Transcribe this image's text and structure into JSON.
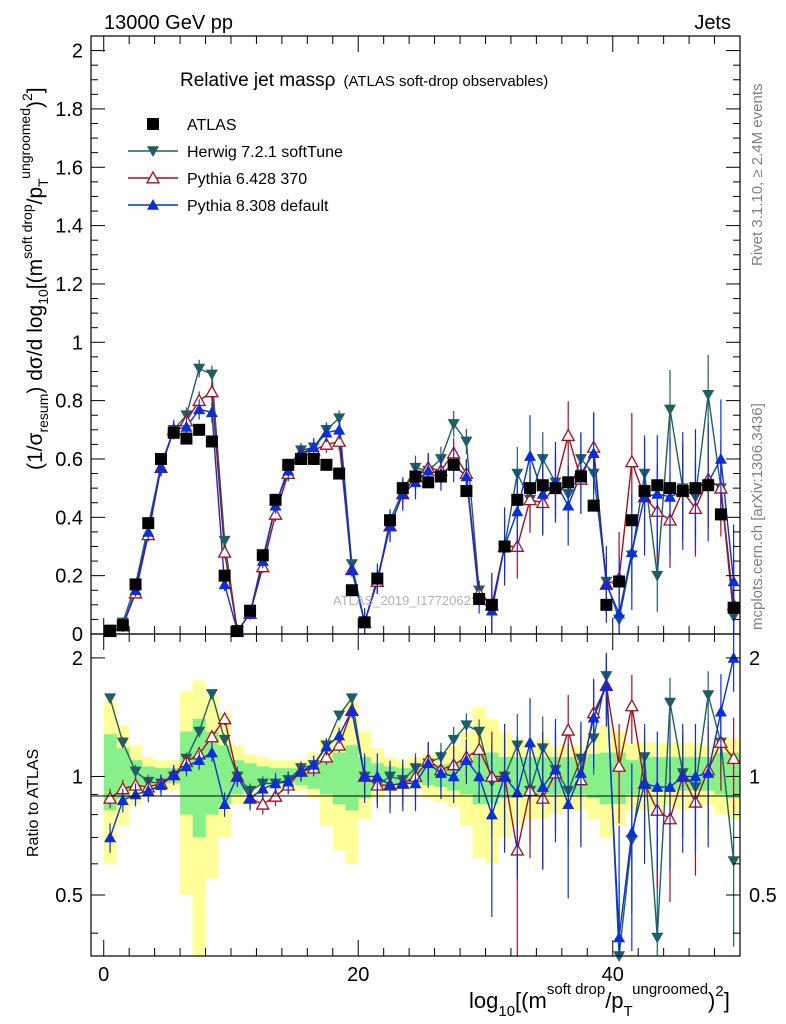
{
  "header": {
    "left": "13000 GeV pp",
    "right": "Jets"
  },
  "side_text": {
    "top": "Rivet 3.1.10, ≥ 2.4M events",
    "bottom": "mcplots.cern.ch [arXiv:1306.3436]"
  },
  "watermark": "ATLAS_2019_I1772062",
  "colors": {
    "atlas": "#000000",
    "herwig": "#1f5f64",
    "pythia6": "#a11020",
    "pythia8": "#0b2fd6",
    "band_inner": "#88f088",
    "band_outer": "#ffff99"
  },
  "chart_data": [
    {
      "type": "scatter",
      "title": "Relative jet massρ",
      "subtitle": "(ATLAS soft-drop observables)",
      "ylabel": "(1/σresum) dσ/d log10[(m soft drop/pT ungroomed)2]",
      "xlim": [
        -1,
        50
      ],
      "ylim": [
        0,
        2.05
      ],
      "y_ticks": [
        "0",
        "0.2",
        "0.4",
        "0.6",
        "0.8",
        "1",
        "1.2",
        "1.4",
        "1.6",
        "1.8",
        "2"
      ],
      "legend_position": "top-left",
      "series": [
        {
          "name": "ATLAS",
          "marker": "square",
          "x": [
            0.5,
            1.5,
            2.5,
            3.5,
            4.5,
            5.5,
            6.5,
            7.5,
            8.5,
            9.5,
            10.5,
            11.5,
            12.5,
            13.5,
            14.5,
            15.5,
            16.5,
            17.5,
            18.5,
            19.5,
            20.5,
            21.5,
            22.5,
            23.5,
            24.5,
            25.5,
            26.5,
            27.5,
            28.5,
            29.5,
            30.5,
            31.5,
            32.5,
            33.5,
            34.5,
            35.5,
            36.5,
            37.5,
            38.5,
            39.5,
            40.5,
            41.5,
            42.5,
            43.5,
            44.5,
            45.5,
            46.5,
            47.5,
            48.5,
            49.5
          ],
          "values": [
            0.01,
            0.03,
            0.17,
            0.38,
            0.6,
            0.69,
            0.67,
            0.7,
            0.66,
            0.2,
            0.01,
            0.08,
            0.27,
            0.46,
            0.58,
            0.6,
            0.6,
            0.58,
            0.55,
            0.15,
            0.04,
            0.19,
            0.39,
            0.5,
            0.54,
            0.52,
            0.54,
            0.58,
            0.49,
            0.12,
            0.1,
            0.3,
            0.46,
            0.5,
            0.51,
            0.5,
            0.52,
            0.54,
            0.44,
            0.1,
            0.18,
            0.39,
            0.49,
            0.51,
            0.5,
            0.49,
            0.5,
            0.51,
            0.41,
            0.09
          ]
        },
        {
          "name": "Herwig 7.2.1 softTune",
          "marker": "triangle-down",
          "x": [
            0.5,
            1.5,
            2.5,
            3.5,
            4.5,
            5.5,
            6.5,
            7.5,
            8.5,
            9.5,
            10.5,
            11.5,
            12.5,
            13.5,
            14.5,
            15.5,
            16.5,
            17.5,
            18.5,
            19.5,
            20.5,
            21.5,
            22.5,
            23.5,
            24.5,
            25.5,
            26.5,
            27.5,
            28.5,
            29.5,
            30.5,
            31.5,
            32.5,
            33.5,
            34.5,
            35.5,
            36.5,
            37.5,
            38.5,
            39.5,
            40.5,
            41.5,
            42.5,
            43.5,
            44.5,
            45.5,
            46.5,
            47.5,
            48.5,
            49.5
          ],
          "values": [
            0.016,
            0.04,
            0.17,
            0.37,
            0.58,
            0.7,
            0.75,
            0.91,
            0.89,
            0.32,
            0.01,
            0.07,
            0.26,
            0.44,
            0.57,
            0.63,
            0.64,
            0.7,
            0.74,
            0.24,
            0.04,
            0.18,
            0.39,
            0.49,
            0.57,
            0.56,
            0.6,
            0.72,
            0.66,
            0.15,
            0.09,
            0.3,
            0.55,
            0.46,
            0.6,
            0.52,
            0.48,
            0.6,
            0.55,
            0.18,
            0.05,
            0.27,
            0.55,
            0.2,
            0.77,
            0.5,
            0.47,
            0.82,
            0.5,
            0.06
          ]
        },
        {
          "name": "Pythia 6.428 370",
          "marker": "triangle-up-open",
          "x": [
            0.5,
            1.5,
            2.5,
            3.5,
            4.5,
            5.5,
            6.5,
            7.5,
            8.5,
            9.5,
            10.5,
            11.5,
            12.5,
            13.5,
            14.5,
            15.5,
            16.5,
            17.5,
            18.5,
            19.5,
            20.5,
            21.5,
            22.5,
            23.5,
            24.5,
            25.5,
            26.5,
            27.5,
            28.5,
            29.5,
            30.5,
            31.5,
            32.5,
            33.5,
            34.5,
            35.5,
            36.5,
            37.5,
            38.5,
            39.5,
            40.5,
            41.5,
            42.5,
            43.5,
            44.5,
            45.5,
            46.5,
            47.5,
            48.5,
            49.5
          ],
          "values": [
            0.009,
            0.028,
            0.14,
            0.34,
            0.57,
            0.7,
            0.73,
            0.8,
            0.83,
            0.28,
            0.01,
            0.07,
            0.23,
            0.41,
            0.55,
            0.62,
            0.63,
            0.65,
            0.66,
            0.22,
            0.04,
            0.18,
            0.37,
            0.48,
            0.54,
            0.57,
            0.56,
            0.62,
            0.55,
            0.14,
            0.1,
            0.3,
            0.3,
            0.46,
            0.45,
            0.51,
            0.68,
            0.53,
            0.64,
            0.17,
            0.19,
            0.59,
            0.47,
            0.42,
            0.39,
            0.49,
            0.43,
            0.53,
            0.5,
            0.1
          ]
        },
        {
          "name": "Pythia 8.308 default",
          "marker": "triangle-up",
          "x": [
            0.5,
            1.5,
            2.5,
            3.5,
            4.5,
            5.5,
            6.5,
            7.5,
            8.5,
            9.5,
            10.5,
            11.5,
            12.5,
            13.5,
            14.5,
            15.5,
            16.5,
            17.5,
            18.5,
            19.5,
            20.5,
            21.5,
            22.5,
            23.5,
            24.5,
            25.5,
            26.5,
            27.5,
            28.5,
            29.5,
            30.5,
            31.5,
            32.5,
            33.5,
            34.5,
            35.5,
            36.5,
            37.5,
            38.5,
            39.5,
            40.5,
            41.5,
            42.5,
            43.5,
            44.5,
            45.5,
            46.5,
            47.5,
            48.5,
            49.5
          ],
          "values": [
            0.007,
            0.026,
            0.15,
            0.35,
            0.57,
            0.7,
            0.71,
            0.77,
            0.76,
            0.17,
            0.01,
            0.07,
            0.25,
            0.44,
            0.56,
            0.62,
            0.64,
            0.69,
            0.7,
            0.22,
            0.04,
            0.19,
            0.37,
            0.48,
            0.52,
            0.56,
            0.55,
            0.58,
            0.54,
            0.12,
            0.08,
            0.3,
            0.42,
            0.61,
            0.48,
            0.52,
            0.44,
            0.55,
            0.62,
            0.17,
            0.07,
            0.28,
            0.47,
            0.48,
            0.47,
            0.49,
            0.5,
            0.52,
            0.6,
            0.18
          ]
        }
      ]
    },
    {
      "type": "line",
      "ylabel": "Ratio to ATLAS",
      "xlabel": "log10[(m soft drop/pT ungroomed)2]",
      "xlim": [
        -1,
        50
      ],
      "ylim": [
        0.35,
        2.3
      ],
      "y_scale": "log",
      "x_ticks": [
        "0",
        "20",
        "40"
      ],
      "y_ticks": [
        "0.5",
        "1",
        "2"
      ],
      "series": [
        {
          "name": "Herwig 7.2.1 softTune",
          "values": [
            1.58,
            1.22,
            1.03,
            0.97,
            0.96,
            1.0,
            1.11,
            1.3,
            1.62,
            1.24,
            1.0,
            0.92,
            0.96,
            0.96,
            0.98,
            1.05,
            1.07,
            1.2,
            1.43,
            1.58,
            1.0,
            0.95,
            1.0,
            0.98,
            1.05,
            1.08,
            1.12,
            1.24,
            1.35,
            1.3,
            0.97,
            1.0,
            1.2,
            0.92,
            1.18,
            1.04,
            0.92,
            1.11,
            1.25,
            1.8,
            0.3,
            0.69,
            1.12,
            0.39,
            1.54,
            1.02,
            0.94,
            1.61,
            1.22,
            0.61
          ]
        },
        {
          "name": "Pythia 6.428 370",
          "values": [
            0.88,
            0.93,
            0.95,
            0.94,
            0.96,
            1.01,
            1.09,
            1.14,
            1.26,
            1.4,
            1.0,
            0.88,
            0.85,
            0.89,
            0.95,
            1.03,
            1.05,
            1.12,
            1.2,
            1.47,
            1.0,
            0.95,
            0.95,
            0.96,
            1.0,
            1.1,
            1.04,
            1.07,
            1.12,
            1.17,
            1.0,
            1.0,
            0.65,
            0.92,
            0.88,
            1.02,
            1.31,
            0.98,
            1.45,
            1.7,
            1.06,
            1.51,
            0.96,
            0.82,
            0.78,
            1.0,
            0.86,
            1.04,
            1.22,
            1.11
          ]
        },
        {
          "name": "Pythia 8.308 default",
          "values": [
            0.7,
            0.87,
            0.9,
            0.92,
            0.95,
            1.01,
            1.06,
            1.1,
            1.15,
            0.85,
            1.0,
            0.88,
            0.93,
            0.96,
            0.97,
            1.03,
            1.07,
            1.19,
            1.27,
            1.47,
            1.0,
            1.0,
            0.95,
            0.96,
            0.96,
            1.08,
            1.02,
            1.0,
            1.1,
            1.0,
            0.8,
            1.0,
            0.91,
            1.22,
            0.94,
            1.04,
            0.85,
            1.02,
            1.41,
            1.7,
            0.39,
            0.72,
            0.96,
            0.94,
            0.94,
            1.0,
            1.0,
            1.02,
            1.46,
            2.0
          ]
        }
      ],
      "bands": {
        "inner": [
          [
            0.82,
            1.28
          ],
          [
            0.88,
            1.18
          ],
          [
            0.93,
            1.1
          ],
          [
            0.95,
            1.06
          ],
          [
            0.96,
            1.05
          ],
          [
            0.96,
            1.05
          ],
          [
            0.8,
            1.3
          ],
          [
            0.7,
            1.4
          ],
          [
            0.8,
            1.3
          ],
          [
            0.85,
            1.2
          ],
          [
            0.9,
            1.1
          ],
          [
            0.93,
            1.08
          ],
          [
            0.95,
            1.06
          ],
          [
            0.96,
            1.05
          ],
          [
            0.96,
            1.05
          ],
          [
            0.95,
            1.05
          ],
          [
            0.93,
            1.07
          ],
          [
            0.9,
            1.1
          ],
          [
            0.85,
            1.15
          ],
          [
            0.82,
            1.2
          ],
          [
            0.88,
            1.12
          ],
          [
            0.93,
            1.08
          ],
          [
            0.95,
            1.06
          ],
          [
            0.96,
            1.05
          ],
          [
            0.96,
            1.05
          ],
          [
            0.95,
            1.06
          ],
          [
            0.94,
            1.07
          ],
          [
            0.92,
            1.08
          ],
          [
            0.9,
            1.1
          ],
          [
            0.85,
            1.15
          ],
          [
            0.85,
            1.15
          ],
          [
            0.88,
            1.12
          ],
          [
            0.9,
            1.12
          ],
          [
            0.9,
            1.12
          ],
          [
            0.9,
            1.12
          ],
          [
            0.9,
            1.12
          ],
          [
            0.9,
            1.12
          ],
          [
            0.9,
            1.12
          ],
          [
            0.88,
            1.14
          ],
          [
            0.85,
            1.15
          ],
          [
            0.85,
            1.15
          ],
          [
            0.9,
            1.1
          ],
          [
            0.92,
            1.12
          ],
          [
            0.92,
            1.12
          ],
          [
            0.92,
            1.12
          ],
          [
            0.92,
            1.12
          ],
          [
            0.92,
            1.12
          ],
          [
            0.92,
            1.12
          ],
          [
            0.9,
            1.15
          ],
          [
            0.88,
            1.15
          ]
        ],
        "outer": [
          [
            0.6,
            1.55
          ],
          [
            0.75,
            1.35
          ],
          [
            0.85,
            1.2
          ],
          [
            0.9,
            1.12
          ],
          [
            0.92,
            1.1
          ],
          [
            0.92,
            1.1
          ],
          [
            0.5,
            1.65
          ],
          [
            0.35,
            1.75
          ],
          [
            0.55,
            1.6
          ],
          [
            0.7,
            1.45
          ],
          [
            0.85,
            1.2
          ],
          [
            0.9,
            1.14
          ],
          [
            0.92,
            1.12
          ],
          [
            0.93,
            1.1
          ],
          [
            0.93,
            1.1
          ],
          [
            0.92,
            1.1
          ],
          [
            0.88,
            1.15
          ],
          [
            0.75,
            1.25
          ],
          [
            0.65,
            1.35
          ],
          [
            0.6,
            1.55
          ],
          [
            0.78,
            1.3
          ],
          [
            0.88,
            1.18
          ],
          [
            0.92,
            1.12
          ],
          [
            0.93,
            1.1
          ],
          [
            0.92,
            1.12
          ],
          [
            0.88,
            1.14
          ],
          [
            0.86,
            1.16
          ],
          [
            0.84,
            1.2
          ],
          [
            0.75,
            1.3
          ],
          [
            0.62,
            1.5
          ],
          [
            0.6,
            1.4
          ],
          [
            0.7,
            1.3
          ],
          [
            0.75,
            1.25
          ],
          [
            0.78,
            1.22
          ],
          [
            0.78,
            1.25
          ],
          [
            0.8,
            1.2
          ],
          [
            0.82,
            1.2
          ],
          [
            0.82,
            1.2
          ],
          [
            0.78,
            1.3
          ],
          [
            0.7,
            1.35
          ],
          [
            0.75,
            1.3
          ],
          [
            0.82,
            1.22
          ],
          [
            0.82,
            1.22
          ],
          [
            0.84,
            1.22
          ],
          [
            0.84,
            1.22
          ],
          [
            0.82,
            1.22
          ],
          [
            0.84,
            1.22
          ],
          [
            0.84,
            1.2
          ],
          [
            0.8,
            1.25
          ],
          [
            0.78,
            1.25
          ]
        ]
      }
    }
  ]
}
